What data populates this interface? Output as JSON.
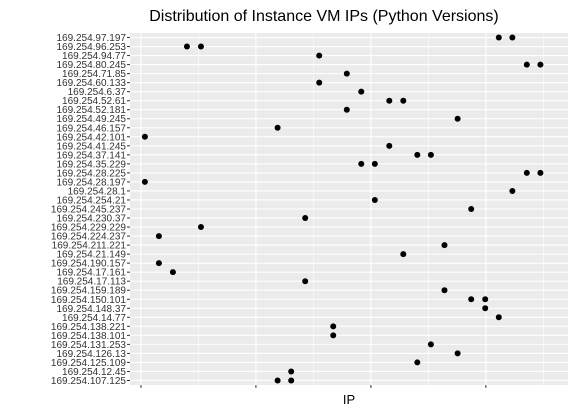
{
  "chart_data": {
    "type": "scatter",
    "title": "Distribution of Instance VM IPs (Python Versions)",
    "xlabel": "IP",
    "ylabel": "",
    "x_tick_labels": "hidden",
    "xlim": [
      0,
      1
    ],
    "grid": true,
    "legend": "none",
    "colors": {
      "panel": "#EBEBEB",
      "grid": "#FFFFFF",
      "point": "#000000",
      "tick_text": "#4D4D4D"
    },
    "categories": [
      "169.254.97.197",
      "169.254.96.253",
      "169.254.94.77",
      "169.254.80.245",
      "169.254.71.85",
      "169.254.60.133",
      "169.254.6.37",
      "169.254.52.61",
      "169.254.52.181",
      "169.254.49.245",
      "169.254.46.157",
      "169.254.42.101",
      "169.254.41.245",
      "169.254.37.141",
      "169.254.35.229",
      "169.254.28.225",
      "169.254.28.197",
      "169.254.28.1",
      "169.254.254.21",
      "169.254.245.237",
      "169.254.230.37",
      "169.254.229.229",
      "169.254.224.237",
      "169.254.211.221",
      "169.254.21.149",
      "169.254.190.157",
      "169.254.17.161",
      "169.254.17.113",
      "169.254.159.189",
      "169.254.150.101",
      "169.254.148.37",
      "169.254.14.77",
      "169.254.138.221",
      "169.254.138.101",
      "169.254.131.253",
      "169.254.126.13",
      "169.254.125.109",
      "169.254.12.45",
      "169.254.107.125"
    ],
    "points": [
      [
        "169.254.97.197",
        0.842
      ],
      [
        "169.254.97.197",
        0.873
      ],
      [
        "169.254.96.253",
        0.13
      ],
      [
        "169.254.96.253",
        0.162
      ],
      [
        "169.254.94.77",
        0.432
      ],
      [
        "169.254.80.245",
        0.906
      ],
      [
        "169.254.80.245",
        0.937
      ],
      [
        "169.254.71.85",
        0.495
      ],
      [
        "169.254.60.133",
        0.432
      ],
      [
        "169.254.6.37",
        0.528
      ],
      [
        "169.254.52.61",
        0.592
      ],
      [
        "169.254.52.61",
        0.624
      ],
      [
        "169.254.52.181",
        0.495
      ],
      [
        "169.254.49.245",
        0.748
      ],
      [
        "169.254.46.157",
        0.337
      ],
      [
        "169.254.42.101",
        0.034
      ],
      [
        "169.254.41.245",
        0.592
      ],
      [
        "169.254.37.141",
        0.656
      ],
      [
        "169.254.37.141",
        0.687
      ],
      [
        "169.254.35.229",
        0.528
      ],
      [
        "169.254.35.229",
        0.559
      ],
      [
        "169.254.28.225",
        0.906
      ],
      [
        "169.254.28.225",
        0.937
      ],
      [
        "169.254.28.197",
        0.034
      ],
      [
        "169.254.28.1",
        0.873
      ],
      [
        "169.254.254.21",
        0.559
      ],
      [
        "169.254.245.237",
        0.779
      ],
      [
        "169.254.230.37",
        0.4
      ],
      [
        "169.254.229.229",
        0.162
      ],
      [
        "169.254.224.237",
        0.066
      ],
      [
        "169.254.211.221",
        0.718
      ],
      [
        "169.254.21.149",
        0.624
      ],
      [
        "169.254.190.157",
        0.066
      ],
      [
        "169.254.17.161",
        0.098
      ],
      [
        "169.254.17.113",
        0.4
      ],
      [
        "169.254.159.189",
        0.718
      ],
      [
        "169.254.150.101",
        0.779
      ],
      [
        "169.254.150.101",
        0.811
      ],
      [
        "169.254.148.37",
        0.811
      ],
      [
        "169.254.14.77",
        0.842
      ],
      [
        "169.254.138.221",
        0.464
      ],
      [
        "169.254.138.101",
        0.464
      ],
      [
        "169.254.131.253",
        0.687
      ],
      [
        "169.254.126.13",
        0.748
      ],
      [
        "169.254.125.109",
        0.656
      ],
      [
        "169.254.12.45",
        0.368
      ],
      [
        "169.254.107.125",
        0.337
      ],
      [
        "169.254.107.125",
        0.368
      ]
    ]
  }
}
